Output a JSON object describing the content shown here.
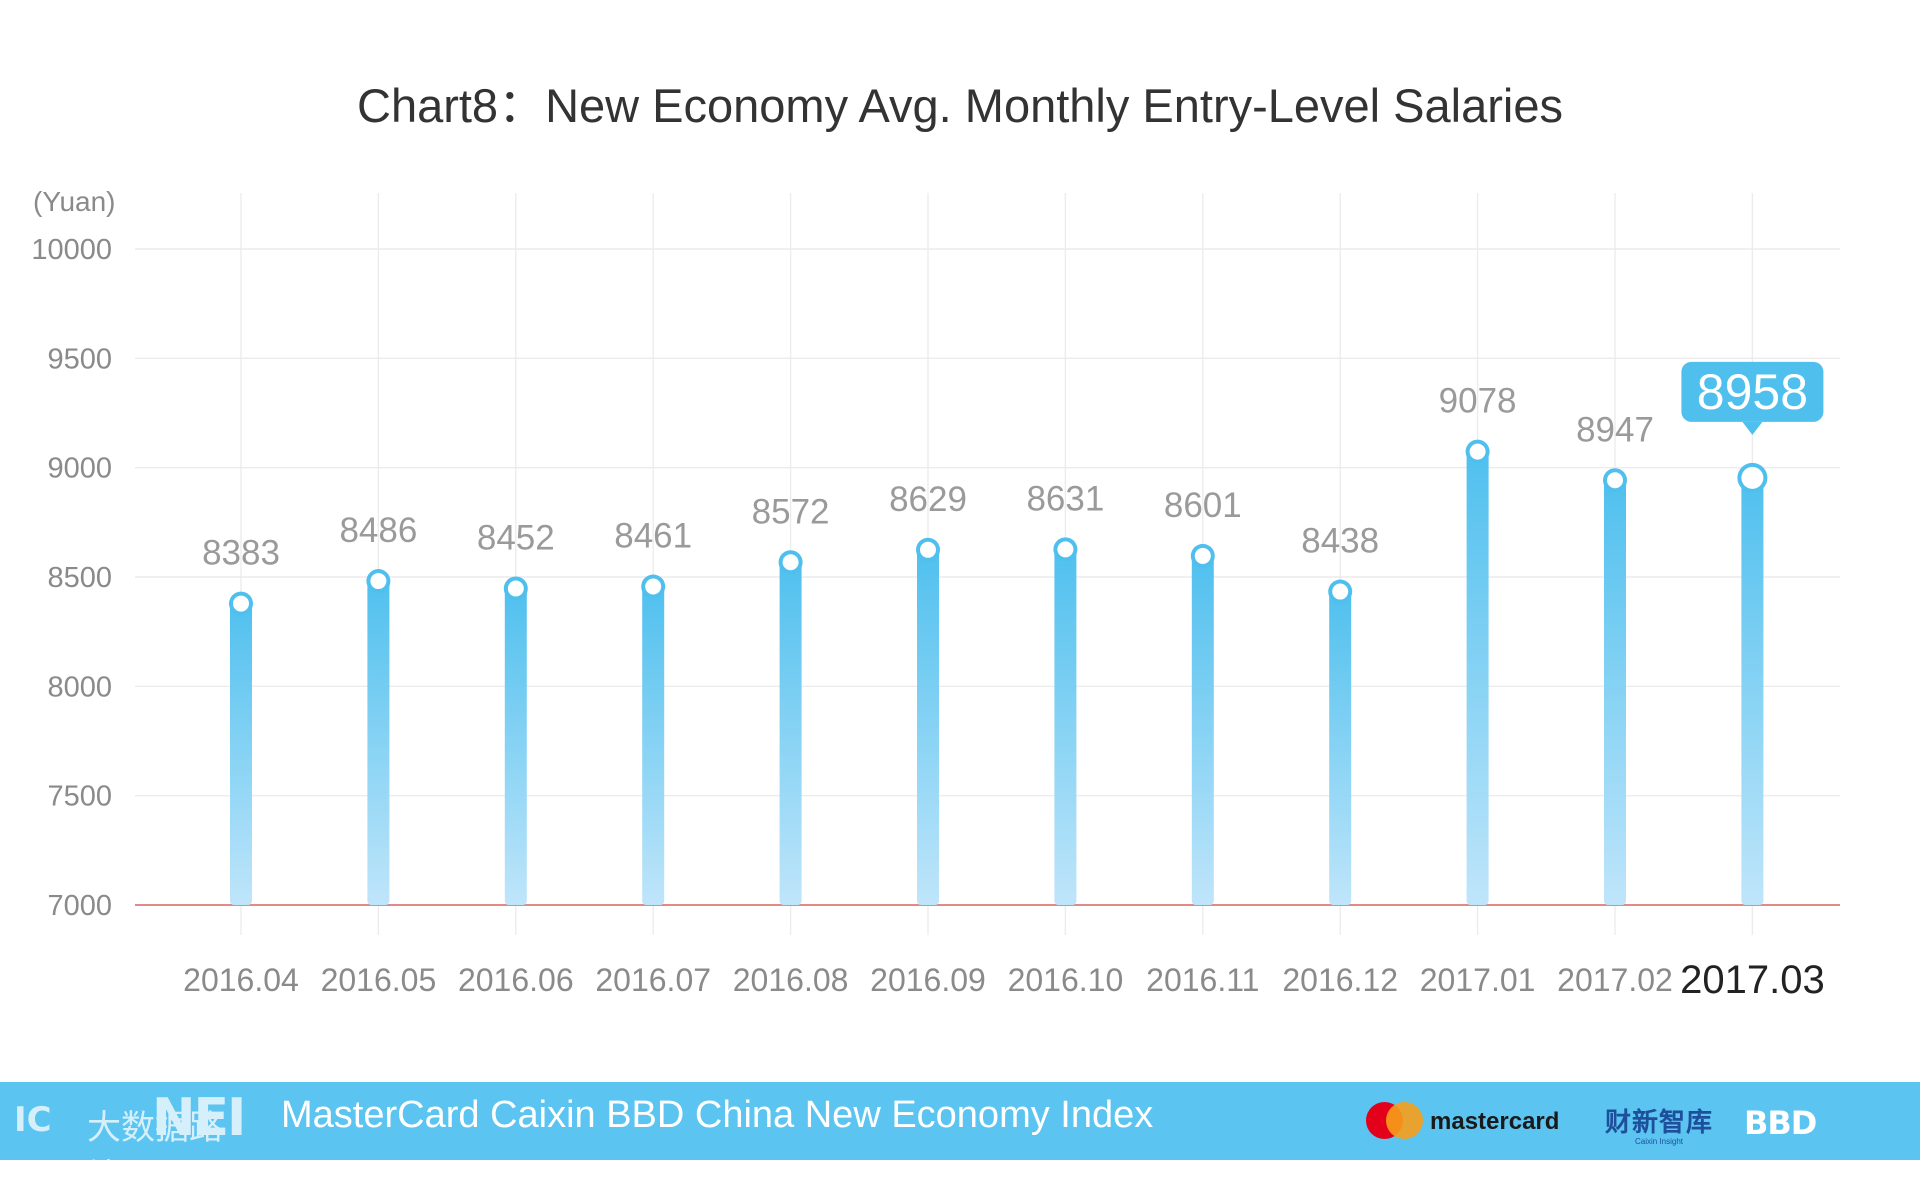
{
  "chart_data": {
    "type": "bar",
    "title": "Chart8：New Economy Avg. Monthly Entry-Level Salaries",
    "ylabel": "(Yuan)",
    "xlabel": "",
    "ylim": [
      7000,
      10000
    ],
    "yticks": [
      7000,
      7500,
      8000,
      8500,
      9000,
      9500,
      10000
    ],
    "grid": true,
    "categories": [
      "2016.04",
      "2016.05",
      "2016.06",
      "2016.07",
      "2016.08",
      "2016.09",
      "2016.10",
      "2016.11",
      "2016.12",
      "2017.01",
      "2017.02",
      "2017.03"
    ],
    "values": [
      8383,
      8486,
      8452,
      8461,
      8572,
      8629,
      8631,
      8601,
      8438,
      9078,
      8947,
      8958
    ],
    "highlight_category": "2017.03",
    "highlight_label": "8958"
  },
  "footer": {
    "logo_cn_text": "大数据路境",
    "logo_nei": "NEI",
    "index_name": "MasterCard Caixin BBD China New Economy Index",
    "sponsor_mastercard": "mastercard",
    "sponsor_caixin_cn": "财新智库",
    "sponsor_caixin_en": "Caixin Insight",
    "sponsor_bbd": "BBD"
  },
  "colors": {
    "bar_top": "#4fc0ee",
    "bar_bottom": "#bfe5fa",
    "callout": "#4fc0ee",
    "baseline": "#e28b86",
    "footer_bg": "#5bc4f1"
  }
}
